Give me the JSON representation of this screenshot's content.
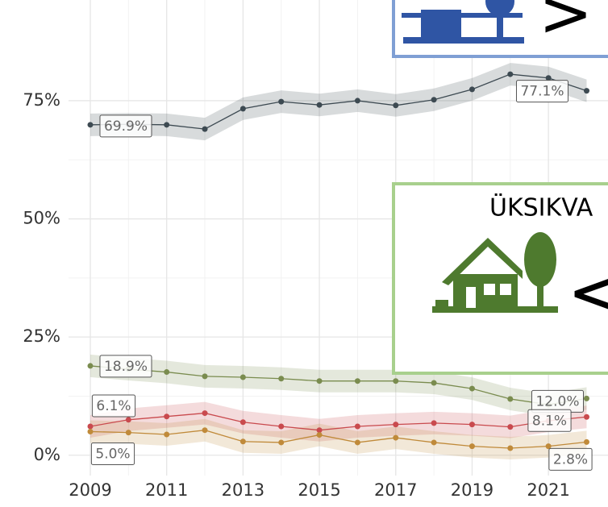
{
  "chart_data": {
    "type": "line",
    "x": [
      2009,
      2010,
      2011,
      2012,
      2013,
      2014,
      2015,
      2016,
      2017,
      2018,
      2019,
      2020,
      2021,
      2022
    ],
    "xlim": [
      2008.43,
      2022.56
    ],
    "xticks": [
      2009,
      2011,
      2013,
      2015,
      2017,
      2019,
      2021
    ],
    "ylim": [
      -4.3,
      96.3
    ],
    "yticks": [
      {
        "value": 0,
        "label": "0%"
      },
      {
        "value": 25,
        "label": "25%"
      },
      {
        "value": 50,
        "label": "50%"
      },
      {
        "value": 75,
        "label": "75%"
      }
    ],
    "grid": true,
    "series": [
      {
        "color": "#3d4a52",
        "values": [
          69.9,
          70.0,
          69.9,
          69.0,
          73.3,
          74.8,
          74.1,
          75.0,
          74.0,
          75.2,
          77.4,
          80.6,
          79.8,
          77.1
        ],
        "value_labels": [
          "69.9%",
          null,
          null,
          null,
          null,
          null,
          null,
          null,
          null,
          null,
          null,
          null,
          null,
          "77.1%"
        ]
      },
      {
        "color": "#7a8c4f",
        "values": [
          18.9,
          18.2,
          17.6,
          16.7,
          16.5,
          16.2,
          15.7,
          15.7,
          15.7,
          15.3,
          14.1,
          11.9,
          10.7,
          12.0
        ],
        "value_labels": [
          "18.9%",
          null,
          null,
          null,
          null,
          null,
          null,
          null,
          null,
          null,
          null,
          null,
          null,
          "12.0%"
        ]
      },
      {
        "color": "#c94a4e",
        "values": [
          6.1,
          7.5,
          8.2,
          8.9,
          7.0,
          6.1,
          5.3,
          6.1,
          6.5,
          6.8,
          6.5,
          6.0,
          7.3,
          8.1
        ],
        "value_labels": [
          "6.1%",
          null,
          null,
          null,
          null,
          null,
          null,
          null,
          null,
          null,
          null,
          null,
          null,
          "8.1%"
        ]
      },
      {
        "color": "#c08a3a",
        "values": [
          5.0,
          4.8,
          4.4,
          5.3,
          2.9,
          2.7,
          4.3,
          2.7,
          3.7,
          2.7,
          1.9,
          1.5,
          1.9,
          2.8
        ],
        "value_labels": [
          "5.0%",
          null,
          null,
          null,
          null,
          null,
          null,
          null,
          null,
          null,
          null,
          null,
          null,
          "2.8%"
        ]
      }
    ]
  },
  "overlays": {
    "top_symbol": ">",
    "box_title": "ÜKSIKVA",
    "box_symbol": "<"
  }
}
